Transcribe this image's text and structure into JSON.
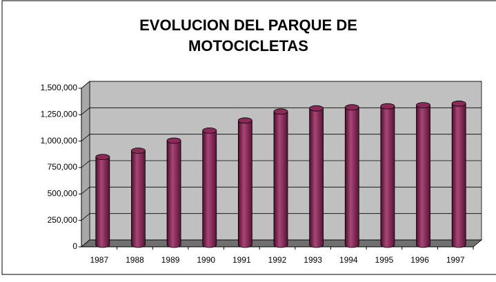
{
  "chart_data": {
    "type": "bar3d",
    "title": "EVOLUCION DEL PARQUE DE MOTOCICLETAS",
    "categories": [
      "1987",
      "1988",
      "1989",
      "1990",
      "1991",
      "1992",
      "1993",
      "1994",
      "1995",
      "1996",
      "1997"
    ],
    "values": [
      830000,
      890000,
      985000,
      1080000,
      1175000,
      1260000,
      1290000,
      1300000,
      1310000,
      1320000,
      1335000
    ],
    "color": "#8b2a57",
    "ylim": [
      0,
      1500000
    ],
    "yticks": [
      0,
      {
        "value": 250000,
        "label": "250,000"
      },
      {
        "value": 500000,
        "label": "500,000"
      },
      {
        "value": 750000,
        "label": "750,000"
      },
      {
        "value": 1000000,
        "label": "1,000,000"
      },
      {
        "value": 1250000,
        "label": "1,250,000"
      },
      {
        "value": 1500000,
        "label": "1,500,000"
      }
    ],
    "grid": true
  }
}
